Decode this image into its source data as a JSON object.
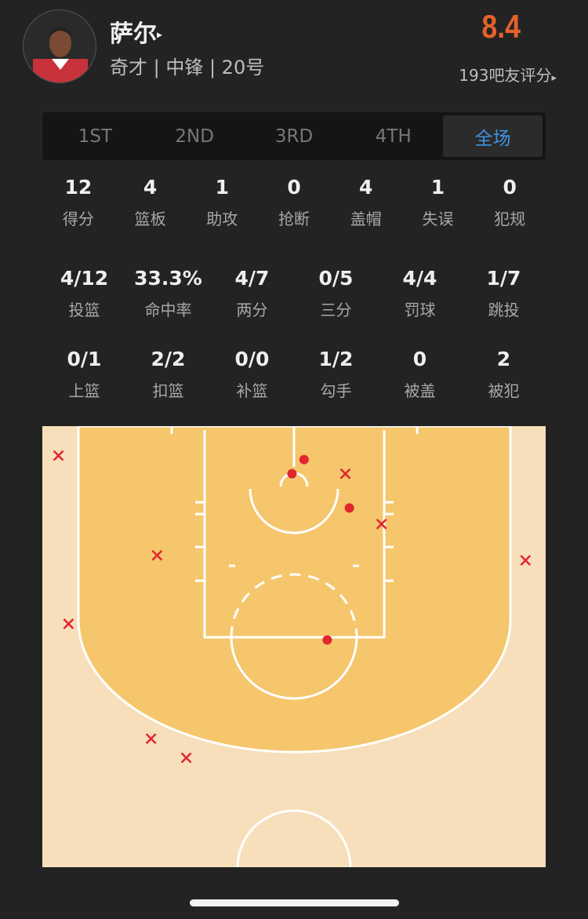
{
  "player": {
    "name": "萨尔",
    "info": "奇才 | 中锋 | 20号",
    "rating": "8.4",
    "raters": "193吧友评分",
    "arrow": "▸"
  },
  "tabs": [
    {
      "label": "1ST"
    },
    {
      "label": "2ND"
    },
    {
      "label": "3RD"
    },
    {
      "label": "4TH"
    },
    {
      "label": "全场",
      "active": true
    }
  ],
  "stats_row1": [
    {
      "v": "12",
      "l": "得分"
    },
    {
      "v": "4",
      "l": "篮板"
    },
    {
      "v": "1",
      "l": "助攻"
    },
    {
      "v": "0",
      "l": "抢断"
    },
    {
      "v": "4",
      "l": "盖帽"
    },
    {
      "v": "1",
      "l": "失误"
    },
    {
      "v": "0",
      "l": "犯规"
    }
  ],
  "stats_row2": [
    {
      "v": "4/12",
      "l": "投篮"
    },
    {
      "v": "33.3%",
      "l": "命中率"
    },
    {
      "v": "4/7",
      "l": "两分"
    },
    {
      "v": "0/5",
      "l": "三分"
    },
    {
      "v": "4/4",
      "l": "罚球"
    },
    {
      "v": "1/7",
      "l": "跳投"
    }
  ],
  "stats_row3": [
    {
      "v": "0/1",
      "l": "上篮"
    },
    {
      "v": "2/2",
      "l": "扣篮"
    },
    {
      "v": "0/0",
      "l": "补篮"
    },
    {
      "v": "1/2",
      "l": "勾手"
    },
    {
      "v": "0",
      "l": "被盖"
    },
    {
      "v": "2",
      "l": "被犯"
    }
  ],
  "colors": {
    "rating": "#e4622a",
    "active_tab": "#3d93e6",
    "court_inner": "#f5c66c",
    "court_outer": "#f7dfbb",
    "shot": "#e0262f"
  },
  "shot_chart": {
    "units": "feet from basket (x right, y toward half-court)",
    "shots": [
      {
        "x": 1.0,
        "y": -1.9,
        "made": true
      },
      {
        "x": -0.2,
        "y": -0.5,
        "made": true
      },
      {
        "x": 5.5,
        "y": 2.9,
        "made": true
      },
      {
        "x": 3.3,
        "y": 16.0,
        "made": true
      },
      {
        "x": -23.4,
        "y": -2.3,
        "made": false
      },
      {
        "x": 5.1,
        "y": -0.5,
        "made": false
      },
      {
        "x": 8.7,
        "y": 4.5,
        "made": false
      },
      {
        "x": -13.6,
        "y": 7.6,
        "made": false
      },
      {
        "x": 23.0,
        "y": 8.1,
        "made": false
      },
      {
        "x": -22.4,
        "y": 14.4,
        "made": false
      },
      {
        "x": -14.2,
        "y": 25.8,
        "made": false
      },
      {
        "x": -10.7,
        "y": 27.7,
        "made": false
      }
    ]
  }
}
